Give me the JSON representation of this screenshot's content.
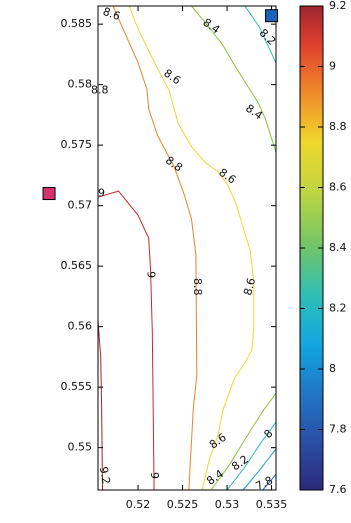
{
  "chart_data": {
    "type": "contour",
    "title": "",
    "xlabel": "",
    "ylabel": "",
    "xlim": [
      0.5155,
      0.5355
    ],
    "ylim": [
      0.5465,
      0.5865
    ],
    "x_ticks": [
      0.52,
      0.525,
      0.53,
      0.535
    ],
    "x_tick_labels": [
      "0.52",
      "0.525",
      "0.53",
      "0.535"
    ],
    "y_ticks": [
      0.55,
      0.555,
      0.56,
      0.565,
      0.57,
      0.575,
      0.58,
      0.585
    ],
    "y_tick_labels": [
      "0.55",
      "0.555",
      "0.56",
      "0.565",
      "0.57",
      "0.575",
      "0.58",
      "0.585"
    ],
    "colorbar": {
      "min": 7.6,
      "max": 9.2,
      "ticks": [
        7.6,
        7.8,
        8,
        8.2,
        8.4,
        8.6,
        8.8,
        9,
        9.2
      ],
      "tick_labels": [
        "7.6",
        "7.8",
        "8",
        "8.2",
        "8.4",
        "8.6",
        "8.8",
        "9",
        "9.2"
      ]
    },
    "contours": [
      {
        "level": 9.2,
        "color": "#a0242c",
        "points": [
          [
            0.5155,
            0.5605
          ],
          [
            0.5158,
            0.5575
          ],
          [
            0.5159,
            0.5535
          ],
          [
            0.516,
            0.5465
          ]
        ]
      },
      {
        "level": 9.0,
        "color": "#c8272e",
        "points": [
          [
            0.5155,
            0.5707
          ],
          [
            0.5178,
            0.5712
          ],
          [
            0.52,
            0.5692
          ],
          [
            0.5212,
            0.5673
          ],
          [
            0.5214,
            0.5648
          ],
          [
            0.5216,
            0.5596
          ],
          [
            0.5218,
            0.5465
          ]
        ]
      },
      {
        "level": 8.8,
        "color": "#e5852a",
        "points": [
          [
            0.5172,
            0.5865
          ],
          [
            0.5185,
            0.5843
          ],
          [
            0.52,
            0.5818
          ],
          [
            0.521,
            0.5796
          ],
          [
            0.5212,
            0.578
          ],
          [
            0.5222,
            0.5758
          ],
          [
            0.524,
            0.5733
          ],
          [
            0.5252,
            0.5709
          ],
          [
            0.526,
            0.5689
          ],
          [
            0.5265,
            0.5659
          ],
          [
            0.5266,
            0.556
          ],
          [
            0.5262,
            0.5531
          ],
          [
            0.5257,
            0.5465
          ]
        ]
      },
      {
        "level": 8.6,
        "color": "#e8dc32",
        "points": [
          [
            0.519,
            0.5865
          ],
          [
            0.52,
            0.5846
          ],
          [
            0.5218,
            0.5819
          ],
          [
            0.5235,
            0.5795
          ],
          [
            0.5245,
            0.5768
          ],
          [
            0.526,
            0.5749
          ],
          [
            0.5275,
            0.5736
          ],
          [
            0.529,
            0.5728
          ],
          [
            0.53,
            0.5718
          ],
          [
            0.531,
            0.5702
          ],
          [
            0.5318,
            0.5682
          ],
          [
            0.5326,
            0.5663
          ],
          [
            0.533,
            0.5638
          ],
          [
            0.533,
            0.56
          ],
          [
            0.5328,
            0.5581
          ],
          [
            0.532,
            0.557
          ],
          [
            0.5308,
            0.5557
          ],
          [
            0.5295,
            0.553
          ],
          [
            0.529,
            0.5511
          ],
          [
            0.528,
            0.549
          ],
          [
            0.5272,
            0.5465
          ]
        ]
      },
      {
        "level": 8.4,
        "color": "#8cc53a",
        "points": [
          [
            0.526,
            0.5865
          ],
          [
            0.5278,
            0.5849
          ],
          [
            0.5295,
            0.5833
          ],
          [
            0.531,
            0.5814
          ],
          [
            0.5323,
            0.5799
          ],
          [
            0.5335,
            0.5785
          ],
          [
            0.5343,
            0.5772
          ],
          [
            0.5355,
            0.5744
          ]
        ]
      },
      {
        "level": 8.4,
        "color": "#8cc53a",
        "points": [
          [
            0.5282,
            0.5465
          ],
          [
            0.5302,
            0.5485
          ],
          [
            0.5322,
            0.5509
          ],
          [
            0.534,
            0.553
          ],
          [
            0.5355,
            0.5545
          ]
        ]
      },
      {
        "level": 8.2,
        "color": "#30b8b0",
        "points": [
          [
            0.532,
            0.5865
          ],
          [
            0.5336,
            0.5848
          ],
          [
            0.5355,
            0.5818
          ]
        ]
      },
      {
        "level": 8.2,
        "color": "#30b8b0",
        "points": [
          [
            0.53,
            0.5465
          ],
          [
            0.532,
            0.5484
          ],
          [
            0.5338,
            0.5504
          ],
          [
            0.5355,
            0.5521
          ]
        ]
      },
      {
        "level": 8.0,
        "color": "#1e9fd8",
        "points": [
          [
            0.5318,
            0.5465
          ],
          [
            0.5335,
            0.548
          ],
          [
            0.5355,
            0.5499
          ]
        ]
      },
      {
        "level": 7.8,
        "color": "#2a6bc0",
        "points": [
          [
            0.534,
            0.5465
          ],
          [
            0.5355,
            0.5478
          ]
        ]
      }
    ],
    "contour_labels": [
      {
        "text": "8.6",
        "x": 0.517,
        "y": 0.5858,
        "angle": 20
      },
      {
        "text": "8.4",
        "x": 0.5282,
        "y": 0.5848,
        "angle": 35
      },
      {
        "text": "8.2",
        "x": 0.5345,
        "y": 0.5839,
        "angle": 45
      },
      {
        "text": "8.8",
        "x": 0.5157,
        "y": 0.5795,
        "angle": 0
      },
      {
        "text": "8.6",
        "x": 0.5238,
        "y": 0.5806,
        "angle": 35
      },
      {
        "text": "8.4",
        "x": 0.533,
        "y": 0.5777,
        "angle": 35
      },
      {
        "text": "8.8",
        "x": 0.524,
        "y": 0.5734,
        "angle": 35
      },
      {
        "text": "8.6",
        "x": 0.53,
        "y": 0.5724,
        "angle": 35
      },
      {
        "text": "9",
        "x": 0.5159,
        "y": 0.571,
        "angle": 0
      },
      {
        "text": "9",
        "x": 0.5214,
        "y": 0.5643,
        "angle": 90
      },
      {
        "text": "8.8",
        "x": 0.5266,
        "y": 0.5633,
        "angle": 90
      },
      {
        "text": "8.6",
        "x": 0.5326,
        "y": 0.5633,
        "angle": -75
      },
      {
        "text": "8.6",
        "x": 0.529,
        "y": 0.5505,
        "angle": -35
      },
      {
        "text": "8",
        "x": 0.5347,
        "y": 0.5511,
        "angle": -45
      },
      {
        "text": "8.2",
        "x": 0.5315,
        "y": 0.5487,
        "angle": -35
      },
      {
        "text": "8.4",
        "x": 0.5287,
        "y": 0.5475,
        "angle": -35
      },
      {
        "text": "9.2",
        "x": 0.5162,
        "y": 0.5477,
        "angle": 80
      },
      {
        "text": "9",
        "x": 0.5218,
        "y": 0.5477,
        "angle": 90
      },
      {
        "text": "7.8",
        "x": 0.5342,
        "y": 0.547,
        "angle": -25
      }
    ],
    "markers": [
      {
        "x": 0.535,
        "y": 0.5857,
        "color": "#1a63b8"
      },
      {
        "x": 0.51,
        "y": 0.571,
        "color": "#d6336e"
      }
    ]
  }
}
